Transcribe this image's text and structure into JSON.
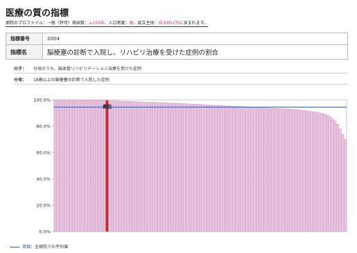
{
  "header": {
    "title": "医療の質の指標",
    "subtitle_prefix": "病院のプロファイル：一般（許可）病床数：",
    "subtitle_red1": "≥150床",
    "subtitle_mid": "、人口密度：",
    "subtitle_red2": "高",
    "subtitle_mid2": "、設立主体：",
    "subtitle_red3": "自治体以外",
    "subtitle_suffix": "に含まれます。"
  },
  "indicator": {
    "number_label": "指標番号",
    "number_value": "2004",
    "name_label": "指標名",
    "name_value": "脳梗塞の診断で入院し、リハビリ治療を受けた症例の割合"
  },
  "definitions": {
    "numerator_label": "分子：",
    "numerator_text": "分母のうち、脳血管リハビリテーション治療を受けた症例",
    "denominator_label": "分母：",
    "denominator_text": "18歳以上の脳梗塞の診断で入院した症例"
  },
  "legend": {
    "label_blue": "青線",
    "label_rest": "：全病院での平均値"
  },
  "colors": {
    "bar_fill": "#e8c3df",
    "bar_edge": "#b57aa8",
    "highlight": "#cc2a2a",
    "mean_line": "#3b5ba8",
    "grid": "#d0d0d0"
  },
  "chart_data": {
    "type": "bar",
    "title": "",
    "xlabel": "",
    "ylabel": "",
    "ylim": [
      0,
      100
    ],
    "yticks": [
      "0.0%",
      "20.0%",
      "40.0%",
      "60.0%",
      "80.0%",
      "100.0%"
    ],
    "ytick_values": [
      0,
      20,
      40,
      60,
      80,
      100
    ],
    "mean_value": 94.5,
    "highlight_label": "貴院",
    "highlight_index": 20,
    "grid": true,
    "legend": "bottom-left",
    "values": [
      100,
      100,
      100,
      100,
      100,
      100,
      100,
      100,
      100,
      100,
      100,
      100,
      99.9,
      99.9,
      99.8,
      99.8,
      99.7,
      99.7,
      99.6,
      99.6,
      99.5,
      99.4,
      99.3,
      99.3,
      99.2,
      99.1,
      99,
      99,
      98.9,
      98.8,
      98.7,
      98.7,
      98.6,
      98.5,
      98.4,
      98.3,
      98.3,
      98.2,
      98.1,
      98,
      97.9,
      97.9,
      97.8,
      97.7,
      97.6,
      97.5,
      97.5,
      97.4,
      97.3,
      97.2,
      97.1,
      97,
      96.9,
      96.8,
      96.7,
      96.6,
      96.5,
      96.4,
      96.3,
      96.2,
      96.1,
      96,
      95.9,
      95.8,
      95.7,
      95.6,
      95.5,
      95.4,
      95.3,
      95.2,
      95.1,
      95,
      94.9,
      94.8,
      94.7,
      94.6,
      94.5,
      94.4,
      94.3,
      94.2,
      94.1,
      94,
      93.9,
      93.8,
      93.7,
      93.6,
      93.5,
      93.4,
      93.3,
      93.2,
      93.1,
      93,
      92.8,
      92.6,
      92.4,
      92.2,
      92,
      91.8,
      91.5,
      91.2,
      90.9,
      90.6,
      90.2,
      89.8,
      89.2,
      88.5,
      87.5,
      86,
      84,
      81.5,
      78,
      74,
      70
    ]
  }
}
